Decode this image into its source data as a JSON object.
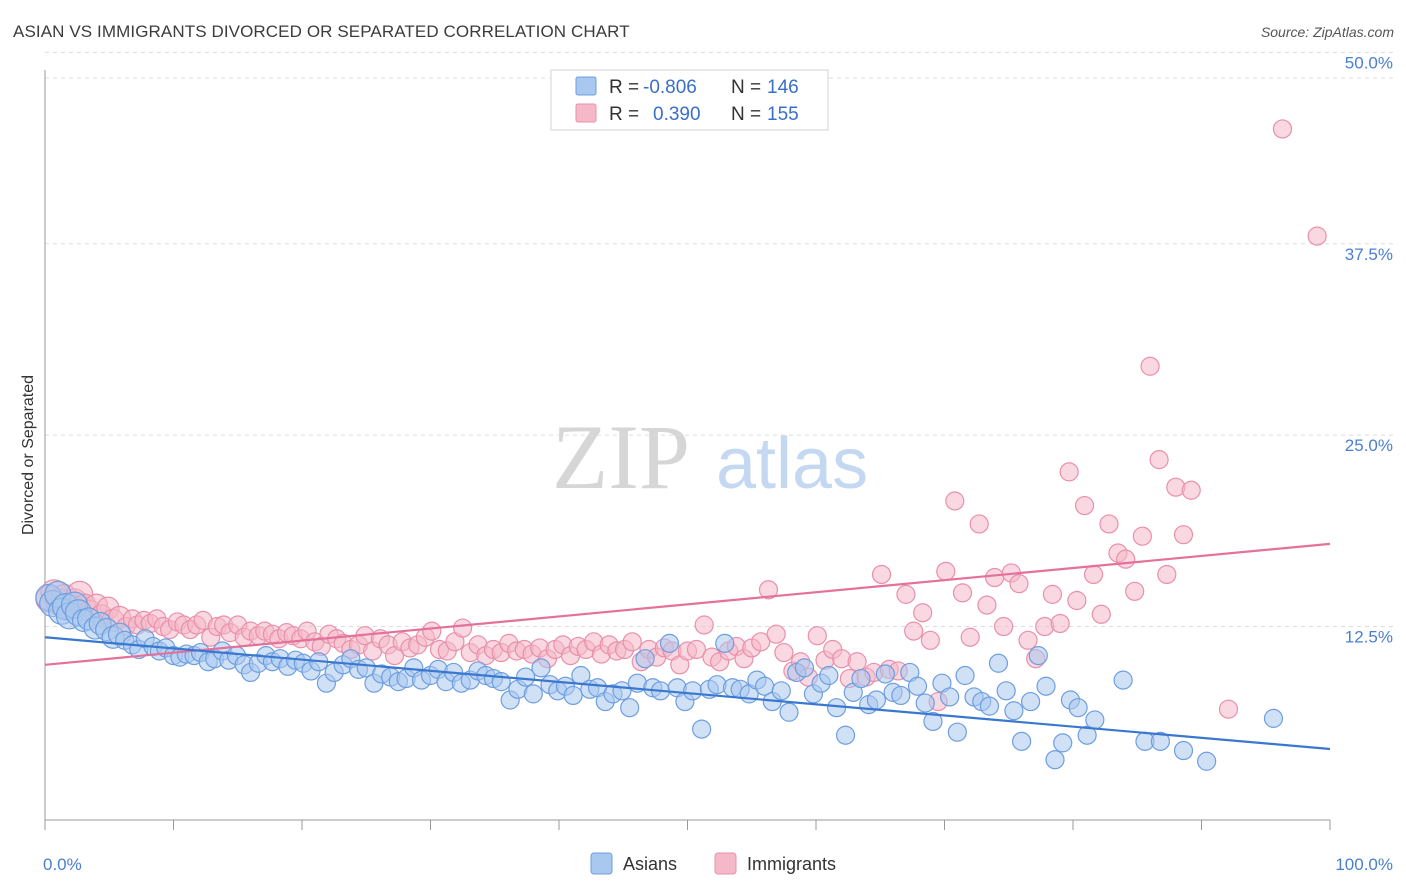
{
  "header": {
    "title": "ASIAN VS IMMIGRANTS DIVORCED OR SEPARATED CORRELATION CHART",
    "source": "Source: ZipAtlas.com"
  },
  "watermark": {
    "zip": "ZIP",
    "atlas": "atlas"
  },
  "colors": {
    "asians_fill": "#a9c8ef",
    "asians_stroke": "#6d9ee0",
    "asians_line": "#3a78d0",
    "immigrants_fill": "#f4b8c9",
    "immigrants_stroke": "#ea8fab",
    "immigrants_line": "#e4719a",
    "tick_label": "#4a7fd0",
    "grid": "#dcdcdc"
  },
  "legend": {
    "rows": [
      {
        "r_label": "R =",
        "r_value": "-0.806",
        "n_label": "N =",
        "n_value": "146"
      },
      {
        "r_label": "R =",
        "r_value": "0.390",
        "n_label": "N =",
        "n_value": "155"
      }
    ]
  },
  "bottom_legend": {
    "asians": "Asians",
    "immigrants": "Immigrants"
  },
  "chart_data": {
    "type": "scatter",
    "title": "ASIAN VS IMMIGRANTS DIVORCED OR SEPARATED CORRELATION CHART",
    "xlabel": "",
    "ylabel": "Divorced or Separated",
    "xlim": [
      0,
      100
    ],
    "ylim": [
      0,
      52
    ],
    "x_tick_labels": [
      "0.0%",
      "100.0%"
    ],
    "y_ticks": [
      12.5,
      25.0,
      37.5,
      50.0
    ],
    "y_tick_labels": [
      "12.5%",
      "25.0%",
      "37.5%",
      "50.0%"
    ],
    "grid": "horizontal dashed",
    "legend_position": "top-center",
    "series": [
      {
        "name": "Asians",
        "r": -0.806,
        "n": 146,
        "trend": {
          "x": [
            0,
            100
          ],
          "y": [
            11.8,
            4.5
          ]
        },
        "points": [
          [
            0.3,
            14.4
          ],
          [
            0.6,
            14.0
          ],
          [
            1.0,
            14.6
          ],
          [
            1.3,
            13.5
          ],
          [
            1.6,
            13.8
          ],
          [
            1.9,
            13.2
          ],
          [
            2.3,
            13.9
          ],
          [
            2.6,
            13.4
          ],
          [
            3.0,
            12.9
          ],
          [
            3.4,
            13.0
          ],
          [
            3.9,
            12.4
          ],
          [
            4.3,
            12.7
          ],
          [
            4.8,
            12.3
          ],
          [
            5.3,
            11.8
          ],
          [
            5.8,
            12.0
          ],
          [
            6.2,
            11.6
          ],
          [
            6.8,
            11.3
          ],
          [
            7.3,
            11.0
          ],
          [
            7.8,
            11.7
          ],
          [
            8.4,
            11.2
          ],
          [
            8.9,
            10.9
          ],
          [
            9.4,
            11.1
          ],
          [
            10.0,
            10.6
          ],
          [
            10.5,
            10.5
          ],
          [
            11.0,
            10.7
          ],
          [
            11.6,
            10.6
          ],
          [
            12.1,
            10.8
          ],
          [
            12.7,
            10.2
          ],
          [
            13.2,
            10.4
          ],
          [
            13.8,
            10.9
          ],
          [
            14.3,
            10.3
          ],
          [
            14.9,
            10.6
          ],
          [
            15.5,
            10.0
          ],
          [
            16.0,
            9.5
          ],
          [
            16.6,
            10.1
          ],
          [
            17.2,
            10.6
          ],
          [
            17.7,
            10.2
          ],
          [
            18.3,
            10.4
          ],
          [
            18.9,
            9.9
          ],
          [
            19.5,
            10.3
          ],
          [
            20.1,
            10.1
          ],
          [
            20.7,
            9.6
          ],
          [
            21.3,
            10.2
          ],
          [
            21.9,
            8.8
          ],
          [
            22.5,
            9.5
          ],
          [
            23.2,
            10.0
          ],
          [
            23.8,
            10.4
          ],
          [
            24.4,
            9.7
          ],
          [
            25.0,
            9.8
          ],
          [
            25.6,
            8.8
          ],
          [
            26.2,
            9.4
          ],
          [
            26.9,
            9.2
          ],
          [
            27.5,
            8.9
          ],
          [
            28.1,
            9.1
          ],
          [
            28.7,
            9.8
          ],
          [
            29.3,
            9.0
          ],
          [
            30.0,
            9.3
          ],
          [
            30.6,
            9.7
          ],
          [
            31.2,
            8.9
          ],
          [
            31.8,
            9.5
          ],
          [
            32.4,
            8.8
          ],
          [
            33.1,
            9.0
          ],
          [
            33.7,
            9.6
          ],
          [
            34.3,
            9.3
          ],
          [
            34.9,
            9.1
          ],
          [
            35.5,
            8.9
          ],
          [
            36.2,
            7.7
          ],
          [
            36.8,
            8.4
          ],
          [
            37.4,
            9.2
          ],
          [
            38.0,
            8.1
          ],
          [
            38.6,
            9.8
          ],
          [
            39.3,
            8.7
          ],
          [
            39.9,
            8.3
          ],
          [
            40.5,
            8.6
          ],
          [
            41.1,
            8.0
          ],
          [
            41.7,
            9.3
          ],
          [
            42.4,
            8.4
          ],
          [
            43.0,
            8.5
          ],
          [
            43.6,
            7.6
          ],
          [
            44.2,
            8.1
          ],
          [
            44.9,
            8.3
          ],
          [
            45.5,
            7.2
          ],
          [
            46.1,
            8.8
          ],
          [
            46.7,
            10.4
          ],
          [
            47.3,
            8.5
          ],
          [
            47.9,
            8.3
          ],
          [
            48.6,
            11.4
          ],
          [
            49.2,
            8.5
          ],
          [
            49.8,
            7.6
          ],
          [
            50.4,
            8.3
          ],
          [
            51.1,
            5.8
          ],
          [
            51.7,
            8.4
          ],
          [
            52.3,
            8.7
          ],
          [
            52.9,
            11.4
          ],
          [
            53.5,
            8.5
          ],
          [
            54.1,
            8.4
          ],
          [
            54.8,
            8.1
          ],
          [
            55.4,
            9.0
          ],
          [
            56.0,
            8.6
          ],
          [
            56.6,
            7.6
          ],
          [
            57.3,
            8.3
          ],
          [
            57.9,
            6.9
          ],
          [
            58.5,
            9.5
          ],
          [
            59.1,
            9.8
          ],
          [
            59.8,
            8.1
          ],
          [
            60.4,
            8.8
          ],
          [
            61.0,
            9.3
          ],
          [
            61.6,
            7.2
          ],
          [
            62.3,
            5.4
          ],
          [
            62.9,
            8.2
          ],
          [
            63.5,
            9.1
          ],
          [
            64.1,
            7.4
          ],
          [
            64.7,
            7.7
          ],
          [
            65.4,
            9.4
          ],
          [
            66.0,
            8.2
          ],
          [
            66.6,
            8.0
          ],
          [
            67.3,
            9.5
          ],
          [
            67.9,
            8.6
          ],
          [
            68.5,
            7.5
          ],
          [
            69.1,
            6.3
          ],
          [
            69.8,
            8.8
          ],
          [
            70.4,
            7.9
          ],
          [
            71.0,
            5.6
          ],
          [
            71.6,
            9.3
          ],
          [
            72.3,
            7.9
          ],
          [
            72.9,
            7.6
          ],
          [
            73.5,
            7.3
          ],
          [
            74.2,
            10.1
          ],
          [
            74.8,
            8.3
          ],
          [
            75.4,
            7.0
          ],
          [
            76.0,
            5.0
          ],
          [
            76.7,
            7.6
          ],
          [
            77.3,
            10.6
          ],
          [
            77.9,
            8.6
          ],
          [
            78.6,
            3.8
          ],
          [
            79.2,
            4.9
          ],
          [
            79.8,
            7.7
          ],
          [
            80.4,
            7.2
          ],
          [
            81.1,
            5.4
          ],
          [
            81.7,
            6.4
          ],
          [
            83.9,
            9.0
          ],
          [
            85.6,
            5.0
          ],
          [
            86.8,
            5.0
          ],
          [
            88.6,
            4.4
          ],
          [
            90.4,
            3.7
          ],
          [
            95.6,
            6.5
          ]
        ]
      },
      {
        "name": "Immigrants",
        "r": 0.39,
        "n": 155,
        "trend": {
          "x": [
            0,
            100
          ],
          "y": [
            10.0,
            17.9
          ]
        },
        "points": [
          [
            0.3,
            14.3
          ],
          [
            0.7,
            14.7
          ],
          [
            1.1,
            14.1
          ],
          [
            1.5,
            14.4
          ],
          [
            1.9,
            13.8
          ],
          [
            2.3,
            14.1
          ],
          [
            2.7,
            14.6
          ],
          [
            3.1,
            13.9
          ],
          [
            3.5,
            13.5
          ],
          [
            4.0,
            13.9
          ],
          [
            4.4,
            13.2
          ],
          [
            4.9,
            13.7
          ],
          [
            5.3,
            12.9
          ],
          [
            5.8,
            13.1
          ],
          [
            6.3,
            12.5
          ],
          [
            6.8,
            13.0
          ],
          [
            7.2,
            12.6
          ],
          [
            7.7,
            12.9
          ],
          [
            8.2,
            12.7
          ],
          [
            8.7,
            13.0
          ],
          [
            9.2,
            12.5
          ],
          [
            9.7,
            12.3
          ],
          [
            10.3,
            12.8
          ],
          [
            10.8,
            12.6
          ],
          [
            11.3,
            12.3
          ],
          [
            11.8,
            12.6
          ],
          [
            12.3,
            12.9
          ],
          [
            12.9,
            11.8
          ],
          [
            13.4,
            12.5
          ],
          [
            13.9,
            12.6
          ],
          [
            14.4,
            12.1
          ],
          [
            15.0,
            12.6
          ],
          [
            15.5,
            11.8
          ],
          [
            16.0,
            12.2
          ],
          [
            16.6,
            11.9
          ],
          [
            17.1,
            12.2
          ],
          [
            17.7,
            12.0
          ],
          [
            18.2,
            11.7
          ],
          [
            18.8,
            12.1
          ],
          [
            19.3,
            11.9
          ],
          [
            19.9,
            11.7
          ],
          [
            20.4,
            12.2
          ],
          [
            21.0,
            11.5
          ],
          [
            21.5,
            11.2
          ],
          [
            22.1,
            12.0
          ],
          [
            22.7,
            11.7
          ],
          [
            23.2,
            11.4
          ],
          [
            23.8,
            11.0
          ],
          [
            24.4,
            11.3
          ],
          [
            24.9,
            11.9
          ],
          [
            25.5,
            10.9
          ],
          [
            26.1,
            11.7
          ],
          [
            26.7,
            11.3
          ],
          [
            27.2,
            10.6
          ],
          [
            27.8,
            11.5
          ],
          [
            28.4,
            11.1
          ],
          [
            29.0,
            11.3
          ],
          [
            29.6,
            11.8
          ],
          [
            30.1,
            12.2
          ],
          [
            30.7,
            11.0
          ],
          [
            31.3,
            10.9
          ],
          [
            31.9,
            11.5
          ],
          [
            32.5,
            12.4
          ],
          [
            33.1,
            10.8
          ],
          [
            33.7,
            11.3
          ],
          [
            34.3,
            10.6
          ],
          [
            34.9,
            11.0
          ],
          [
            35.5,
            10.8
          ],
          [
            36.1,
            11.4
          ],
          [
            36.7,
            10.9
          ],
          [
            37.3,
            11.0
          ],
          [
            37.9,
            10.7
          ],
          [
            38.5,
            11.1
          ],
          [
            39.1,
            10.4
          ],
          [
            39.7,
            11.0
          ],
          [
            40.3,
            11.3
          ],
          [
            40.9,
            10.6
          ],
          [
            41.5,
            11.2
          ],
          [
            42.1,
            11.0
          ],
          [
            42.7,
            11.5
          ],
          [
            43.3,
            10.7
          ],
          [
            43.9,
            11.3
          ],
          [
            44.5,
            10.9
          ],
          [
            45.1,
            11.0
          ],
          [
            45.7,
            11.5
          ],
          [
            46.4,
            10.2
          ],
          [
            47.0,
            11.0
          ],
          [
            47.6,
            10.5
          ],
          [
            48.2,
            11.1
          ],
          [
            48.8,
            10.9
          ],
          [
            49.4,
            10.0
          ],
          [
            50.0,
            10.9
          ],
          [
            50.7,
            11.0
          ],
          [
            51.3,
            12.6
          ],
          [
            51.9,
            10.5
          ],
          [
            52.5,
            10.2
          ],
          [
            53.2,
            10.9
          ],
          [
            53.8,
            11.2
          ],
          [
            54.4,
            10.4
          ],
          [
            55.0,
            11.1
          ],
          [
            55.7,
            11.5
          ],
          [
            56.3,
            14.9
          ],
          [
            56.9,
            12.0
          ],
          [
            57.5,
            10.8
          ],
          [
            58.2,
            9.6
          ],
          [
            58.8,
            10.2
          ],
          [
            59.4,
            9.2
          ],
          [
            60.1,
            11.9
          ],
          [
            60.7,
            10.3
          ],
          [
            61.3,
            11.0
          ],
          [
            62.0,
            10.4
          ],
          [
            62.6,
            9.1
          ],
          [
            63.2,
            10.2
          ],
          [
            63.9,
            9.2
          ],
          [
            64.5,
            9.5
          ],
          [
            65.1,
            15.9
          ],
          [
            65.7,
            9.7
          ],
          [
            66.4,
            9.6
          ],
          [
            67.0,
            14.6
          ],
          [
            67.6,
            12.2
          ],
          [
            68.3,
            13.4
          ],
          [
            68.9,
            11.6
          ],
          [
            69.5,
            7.6
          ],
          [
            70.1,
            16.1
          ],
          [
            70.8,
            20.7
          ],
          [
            71.4,
            14.7
          ],
          [
            72.0,
            11.8
          ],
          [
            72.7,
            19.2
          ],
          [
            73.3,
            13.9
          ],
          [
            73.9,
            15.7
          ],
          [
            74.6,
            12.5
          ],
          [
            75.2,
            16.0
          ],
          [
            75.8,
            15.3
          ],
          [
            76.5,
            11.6
          ],
          [
            77.1,
            10.4
          ],
          [
            77.8,
            12.5
          ],
          [
            78.4,
            14.6
          ],
          [
            79.0,
            12.7
          ],
          [
            79.7,
            22.6
          ],
          [
            80.3,
            14.2
          ],
          [
            80.9,
            20.4
          ],
          [
            81.6,
            15.9
          ],
          [
            82.2,
            13.3
          ],
          [
            82.8,
            19.2
          ],
          [
            83.5,
            17.3
          ],
          [
            84.1,
            16.9
          ],
          [
            84.8,
            14.8
          ],
          [
            85.4,
            18.4
          ],
          [
            86.0,
            29.5
          ],
          [
            86.7,
            23.4
          ],
          [
            87.3,
            15.9
          ],
          [
            88.0,
            21.6
          ],
          [
            88.6,
            18.5
          ],
          [
            89.2,
            21.4
          ],
          [
            92.1,
            7.1
          ],
          [
            96.3,
            45.0
          ],
          [
            99.0,
            38.0
          ]
        ]
      }
    ]
  }
}
